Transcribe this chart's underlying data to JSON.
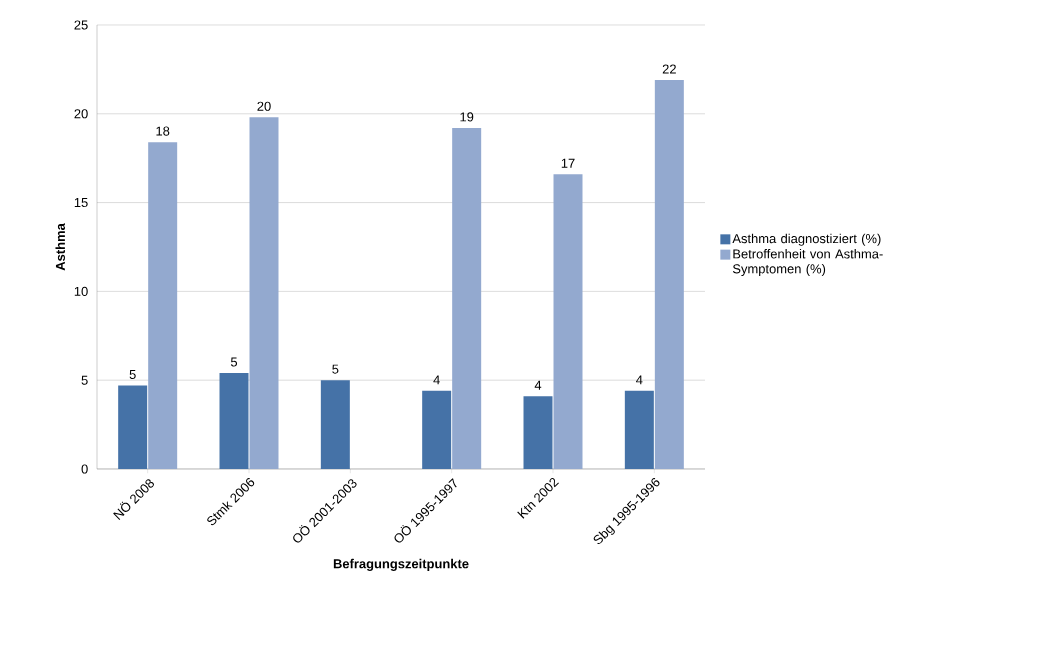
{
  "chart_data": {
    "type": "bar",
    "xlabel": "Befragungszeitpunkte",
    "ylabel": "Asthma",
    "categories": [
      "NÖ 2008",
      "Stmk 2006",
      "OÖ 2001-2003",
      "OÖ 1995-1997",
      "Ktn 2002",
      "Sbg 1995-1996"
    ],
    "series": [
      {
        "name": "Asthma diagnostiziert (%)",
        "color": "#4572a7",
        "values": [
          4.7,
          5.4,
          5.0,
          4.4,
          4.1,
          4.4
        ],
        "value_labels": [
          "5",
          "5",
          "5",
          "4",
          "4",
          "4"
        ]
      },
      {
        "name": "Betroffenheit von Asthma-Symptomen (%)",
        "color": "#93a9cf",
        "values": [
          18.4,
          19.8,
          null,
          19.2,
          16.6,
          21.9
        ],
        "value_labels": [
          "18",
          "20",
          null,
          "19",
          "17",
          "22"
        ]
      }
    ],
    "ylim": [
      0,
      25
    ],
    "yticks": [
      0,
      5,
      10,
      15,
      20,
      25
    ],
    "grid": "y",
    "legend": "right"
  }
}
